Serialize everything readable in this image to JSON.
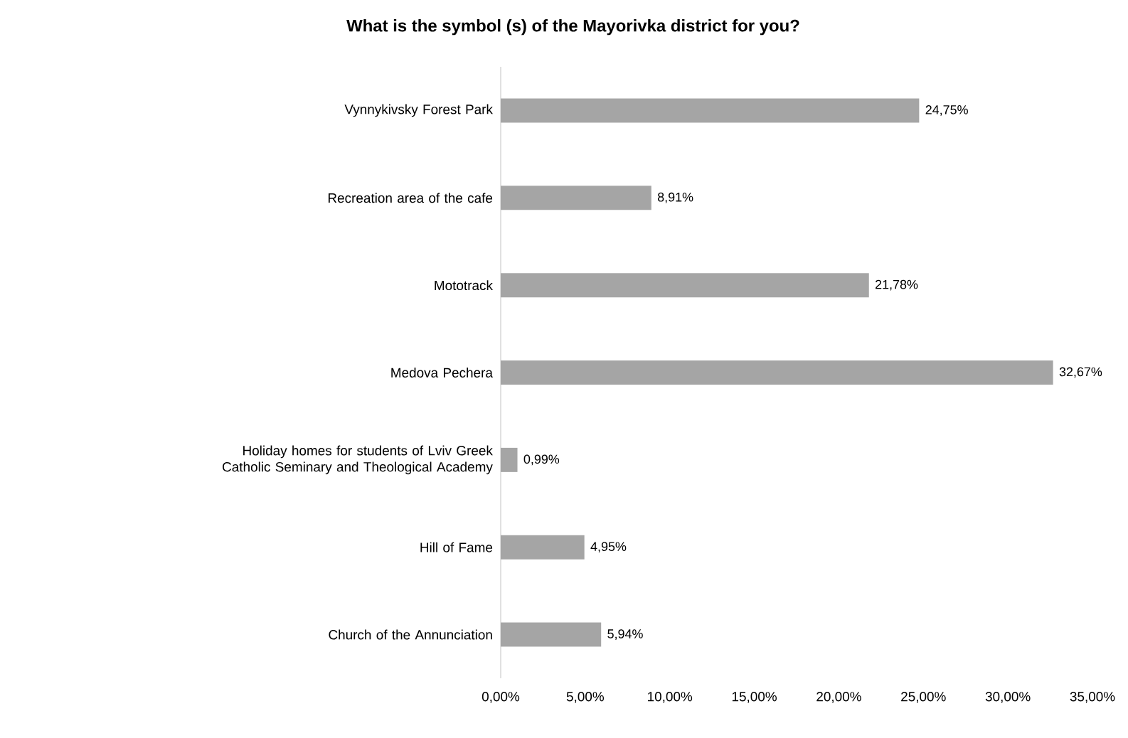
{
  "chart_data": {
    "type": "bar",
    "orientation": "horizontal",
    "title": "What is the symbol (s) of the Mayorivka district for you?",
    "categories": [
      "Vynnykivsky Forest Park",
      "Recreation area of the cafe",
      "Mototrack",
      "Medova Pechera",
      "Holiday homes for students of Lviv Greek Catholic Seminary and Theological Academy",
      "Hill of Fame",
      "Church of the Annunciation"
    ],
    "values": [
      24.75,
      8.91,
      21.78,
      32.67,
      0.99,
      4.95,
      5.94
    ],
    "value_labels": [
      "24,75%",
      "8,91%",
      "21,78%",
      "32,67%",
      "0,99%",
      "4,95%",
      "5,94%"
    ],
    "color": "#a5a5a5",
    "xlim": [
      0,
      35
    ],
    "xticks": [
      {
        "value": 0,
        "label": "0,00%"
      },
      {
        "value": 5,
        "label": "5,00%"
      },
      {
        "value": 10,
        "label": "10,00%"
      },
      {
        "value": 15,
        "label": "15,00%"
      },
      {
        "value": 20,
        "label": "20,00%"
      },
      {
        "value": 25,
        "label": "25,00%"
      },
      {
        "value": 30,
        "label": "30,00%"
      },
      {
        "value": 35,
        "label": "35,00%"
      }
    ]
  }
}
